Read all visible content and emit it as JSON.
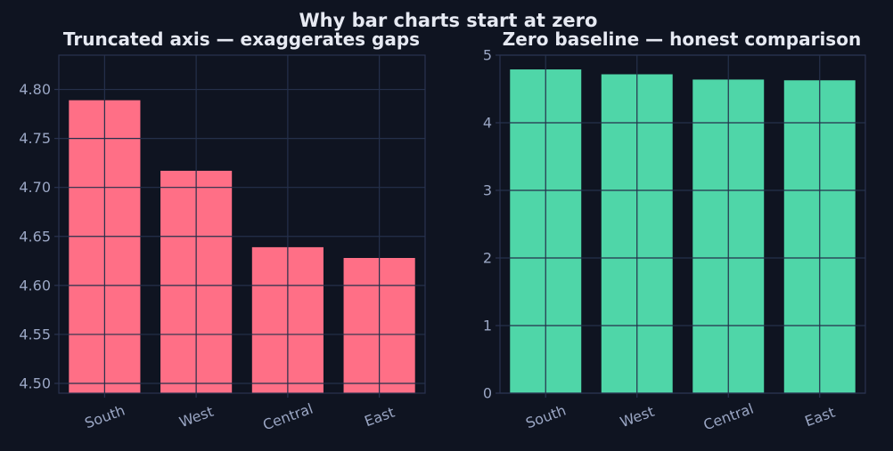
{
  "figure": {
    "title": "Why bar charts start at zero"
  },
  "chart_data": [
    {
      "type": "bar",
      "title": "Truncated axis — exaggerates gaps",
      "categories": [
        "South",
        "West",
        "Central",
        "East"
      ],
      "values": [
        4.789,
        4.717,
        4.639,
        4.628
      ],
      "ylim": [
        4.49,
        4.835
      ],
      "yticks": [
        "4.50",
        "4.55",
        "4.60",
        "4.65",
        "4.70",
        "4.75",
        "4.80"
      ],
      "xlabel": "",
      "ylabel": "",
      "grid": true,
      "color": "#ff6f86"
    },
    {
      "type": "bar",
      "title": "Zero baseline — honest comparison",
      "categories": [
        "South",
        "West",
        "Central",
        "East"
      ],
      "values": [
        4.789,
        4.717,
        4.639,
        4.628
      ],
      "ylim": [
        0,
        5
      ],
      "yticks": [
        "0",
        "1",
        "2",
        "3",
        "4",
        "5"
      ],
      "xlabel": "",
      "ylabel": "",
      "grid": true,
      "color": "#4fd6a8"
    }
  ]
}
